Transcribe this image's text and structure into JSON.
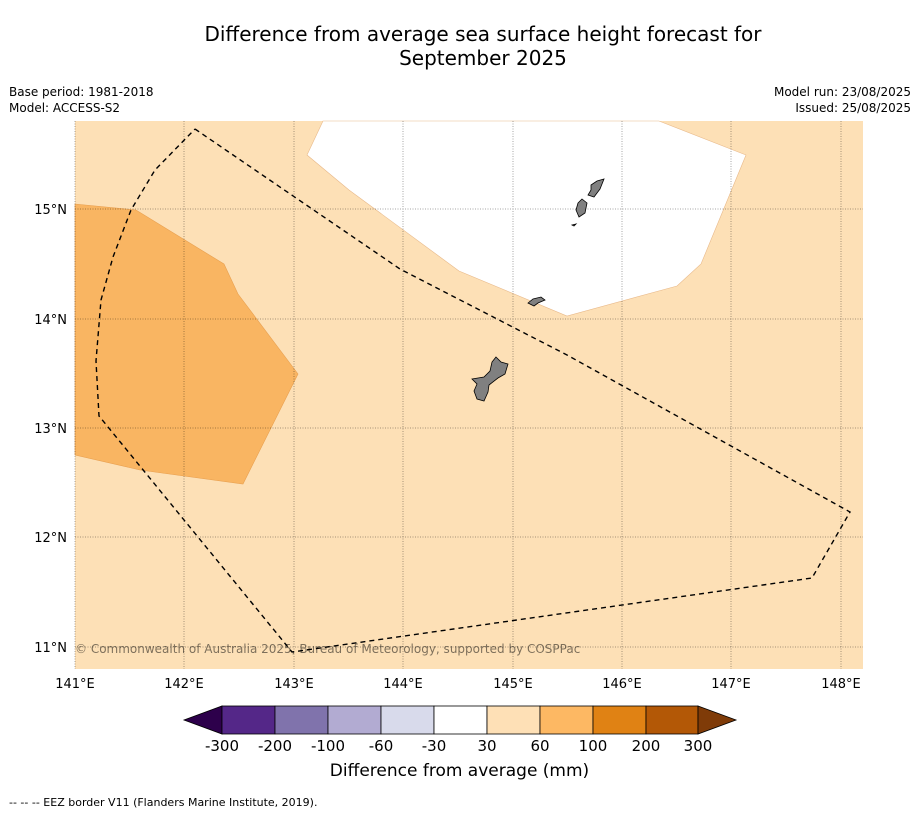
{
  "title_line1": "Difference from average sea surface height forecast for",
  "title_line2": "September 2025",
  "meta_left": {
    "base_period": "Base period: 1981-2018",
    "model": "Model: ACCESS-S2"
  },
  "meta_right": {
    "model_run": "Model run: 23/08/2025",
    "issued": "Issued: 25/08/2025"
  },
  "map": {
    "lat_labels": [
      "15°N",
      "14°N",
      "13°N",
      "12°N",
      "11°N"
    ],
    "lon_labels": [
      "141°E",
      "142°E",
      "143°E",
      "144°E",
      "145°E",
      "146°E",
      "147°E",
      "148°E"
    ],
    "copyright": "© Commonwealth of Australia 2025, Bureau of Meteorology, supported by COSPPac",
    "colors": {
      "ocean_30_60": "#fde0b6",
      "ocean_60_100": "#f9b562",
      "neutral": "#ffffff",
      "land": "#808080"
    }
  },
  "colorbar": {
    "tick_labels": [
      "-300",
      "-200",
      "-100",
      "-60",
      "-30",
      "30",
      "60",
      "100",
      "200",
      "300"
    ],
    "colors": [
      "#2d004b",
      "#542788",
      "#8073ac",
      "#b2abd2",
      "#d8daeb",
      "#ffffff",
      "#fee0b6",
      "#fdb863",
      "#e08214",
      "#b35806",
      "#7f3b08"
    ],
    "label": "Difference from average (mm)"
  },
  "footnote": "--  --  -- EEZ border V11 (Flanders Marine Institute, 2019)."
}
